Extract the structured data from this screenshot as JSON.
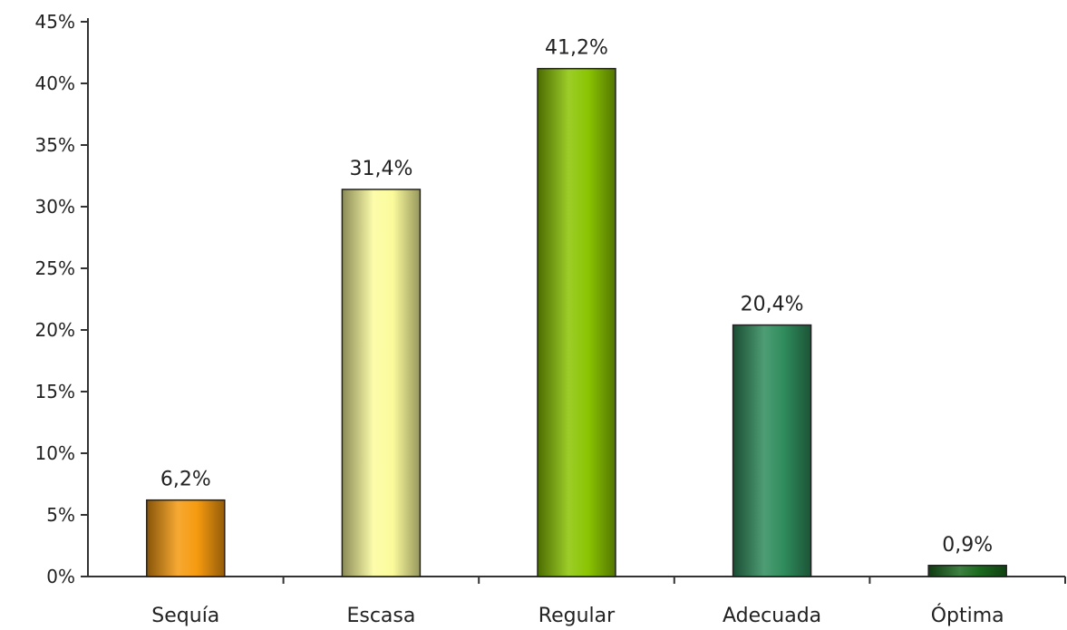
{
  "chart_data": {
    "type": "bar",
    "title": "",
    "xlabel": "",
    "ylabel": "",
    "categories": [
      "Sequía",
      "Escasa",
      "Regular",
      "Adecuada",
      "Óptima"
    ],
    "values": [
      6.2,
      31.4,
      41.2,
      20.4,
      0.9
    ],
    "data_labels": [
      "6,2%",
      "31,4%",
      "41,2%",
      "20,4%",
      "0,9%"
    ],
    "ylim": [
      0,
      45
    ],
    "yticks": [
      0,
      5,
      10,
      15,
      20,
      25,
      30,
      35,
      40,
      45
    ],
    "ytick_labels": [
      "0%",
      "5%",
      "10%",
      "15%",
      "20%",
      "25%",
      "30%",
      "35%",
      "40%",
      "45%"
    ],
    "grid": false,
    "legend": "none",
    "colors": [
      "#f59a0f",
      "#fbfb9c",
      "#8ac402",
      "#2f8c5c",
      "#1b6a1e"
    ]
  }
}
